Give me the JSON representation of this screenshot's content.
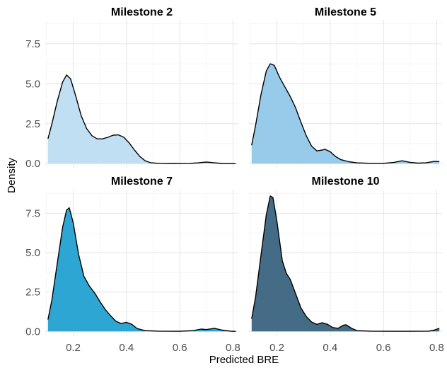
{
  "chart_data": {
    "type": "area",
    "xlabel": "Predicted BRE",
    "ylabel": "Density",
    "xlim": [
      0.095,
      0.82
    ],
    "ylim": [
      -0.3,
      9.0
    ],
    "x_ticks": [
      0.2,
      0.4,
      0.6,
      0.8
    ],
    "x_tick_labels": [
      "0.2",
      "0.4",
      "0.6",
      "0.8"
    ],
    "y_ticks": [
      0.0,
      2.5,
      5.0,
      7.5
    ],
    "y_tick_labels": [
      "0.0",
      "2.5",
      "5.0",
      "7.5"
    ],
    "grid": true,
    "layout": "2x2 facets",
    "panels": [
      {
        "title": "Milestone 2",
        "fill": "#c0dff2",
        "points": [
          [
            0.105,
            1.55
          ],
          [
            0.12,
            2.5
          ],
          [
            0.14,
            3.9
          ],
          [
            0.16,
            5.1
          ],
          [
            0.175,
            5.55
          ],
          [
            0.19,
            5.3
          ],
          [
            0.21,
            4.2
          ],
          [
            0.23,
            3.0
          ],
          [
            0.25,
            2.2
          ],
          [
            0.27,
            1.75
          ],
          [
            0.29,
            1.55
          ],
          [
            0.31,
            1.55
          ],
          [
            0.33,
            1.65
          ],
          [
            0.35,
            1.78
          ],
          [
            0.37,
            1.8
          ],
          [
            0.39,
            1.65
          ],
          [
            0.41,
            1.3
          ],
          [
            0.43,
            0.85
          ],
          [
            0.45,
            0.45
          ],
          [
            0.47,
            0.18
          ],
          [
            0.49,
            0.06
          ],
          [
            0.52,
            0.02
          ],
          [
            0.58,
            0.01
          ],
          [
            0.64,
            0.02
          ],
          [
            0.67,
            0.05
          ],
          [
            0.7,
            0.1
          ],
          [
            0.73,
            0.05
          ],
          [
            0.76,
            0.01
          ],
          [
            0.81,
            0.0
          ]
        ]
      },
      {
        "title": "Milestone 5",
        "fill": "#98cbea",
        "points": [
          [
            0.105,
            1.15
          ],
          [
            0.12,
            2.4
          ],
          [
            0.14,
            4.3
          ],
          [
            0.16,
            5.8
          ],
          [
            0.175,
            6.25
          ],
          [
            0.19,
            6.15
          ],
          [
            0.21,
            5.4
          ],
          [
            0.23,
            4.8
          ],
          [
            0.25,
            4.2
          ],
          [
            0.27,
            3.5
          ],
          [
            0.29,
            2.6
          ],
          [
            0.31,
            1.75
          ],
          [
            0.33,
            1.1
          ],
          [
            0.35,
            0.8
          ],
          [
            0.37,
            0.85
          ],
          [
            0.38,
            0.9
          ],
          [
            0.4,
            0.75
          ],
          [
            0.42,
            0.45
          ],
          [
            0.44,
            0.25
          ],
          [
            0.47,
            0.12
          ],
          [
            0.5,
            0.05
          ],
          [
            0.55,
            0.02
          ],
          [
            0.6,
            0.02
          ],
          [
            0.64,
            0.08
          ],
          [
            0.67,
            0.18
          ],
          [
            0.7,
            0.08
          ],
          [
            0.73,
            0.03
          ],
          [
            0.76,
            0.05
          ],
          [
            0.79,
            0.14
          ],
          [
            0.81,
            0.13
          ]
        ]
      },
      {
        "title": "Milestone 7",
        "fill": "#2ea6d4",
        "points": [
          [
            0.105,
            0.75
          ],
          [
            0.12,
            2.0
          ],
          [
            0.14,
            4.3
          ],
          [
            0.16,
            6.6
          ],
          [
            0.175,
            7.7
          ],
          [
            0.185,
            7.85
          ],
          [
            0.2,
            6.9
          ],
          [
            0.22,
            4.9
          ],
          [
            0.24,
            3.5
          ],
          [
            0.26,
            2.9
          ],
          [
            0.28,
            2.45
          ],
          [
            0.3,
            1.9
          ],
          [
            0.32,
            1.4
          ],
          [
            0.34,
            1.0
          ],
          [
            0.36,
            0.65
          ],
          [
            0.38,
            0.5
          ],
          [
            0.4,
            0.58
          ],
          [
            0.42,
            0.45
          ],
          [
            0.44,
            0.18
          ],
          [
            0.47,
            0.05
          ],
          [
            0.52,
            0.02
          ],
          [
            0.6,
            0.01
          ],
          [
            0.65,
            0.05
          ],
          [
            0.68,
            0.15
          ],
          [
            0.7,
            0.12
          ],
          [
            0.73,
            0.2
          ],
          [
            0.76,
            0.08
          ],
          [
            0.79,
            0.02
          ],
          [
            0.81,
            0.0
          ]
        ]
      },
      {
        "title": "Milestone 10",
        "fill": "#456c87",
        "points": [
          [
            0.105,
            0.8
          ],
          [
            0.12,
            2.2
          ],
          [
            0.14,
            4.8
          ],
          [
            0.16,
            7.4
          ],
          [
            0.175,
            8.6
          ],
          [
            0.185,
            8.5
          ],
          [
            0.2,
            7.0
          ],
          [
            0.22,
            4.5
          ],
          [
            0.235,
            3.7
          ],
          [
            0.25,
            3.3
          ],
          [
            0.27,
            2.4
          ],
          [
            0.29,
            1.5
          ],
          [
            0.31,
            0.95
          ],
          [
            0.33,
            0.6
          ],
          [
            0.35,
            0.45
          ],
          [
            0.37,
            0.55
          ],
          [
            0.39,
            0.45
          ],
          [
            0.41,
            0.25
          ],
          [
            0.43,
            0.2
          ],
          [
            0.45,
            0.4
          ],
          [
            0.46,
            0.42
          ],
          [
            0.48,
            0.2
          ],
          [
            0.5,
            0.05
          ],
          [
            0.55,
            0.02
          ],
          [
            0.62,
            0.01
          ],
          [
            0.7,
            0.01
          ],
          [
            0.77,
            0.02
          ],
          [
            0.79,
            0.08
          ],
          [
            0.81,
            0.2
          ]
        ]
      }
    ]
  }
}
